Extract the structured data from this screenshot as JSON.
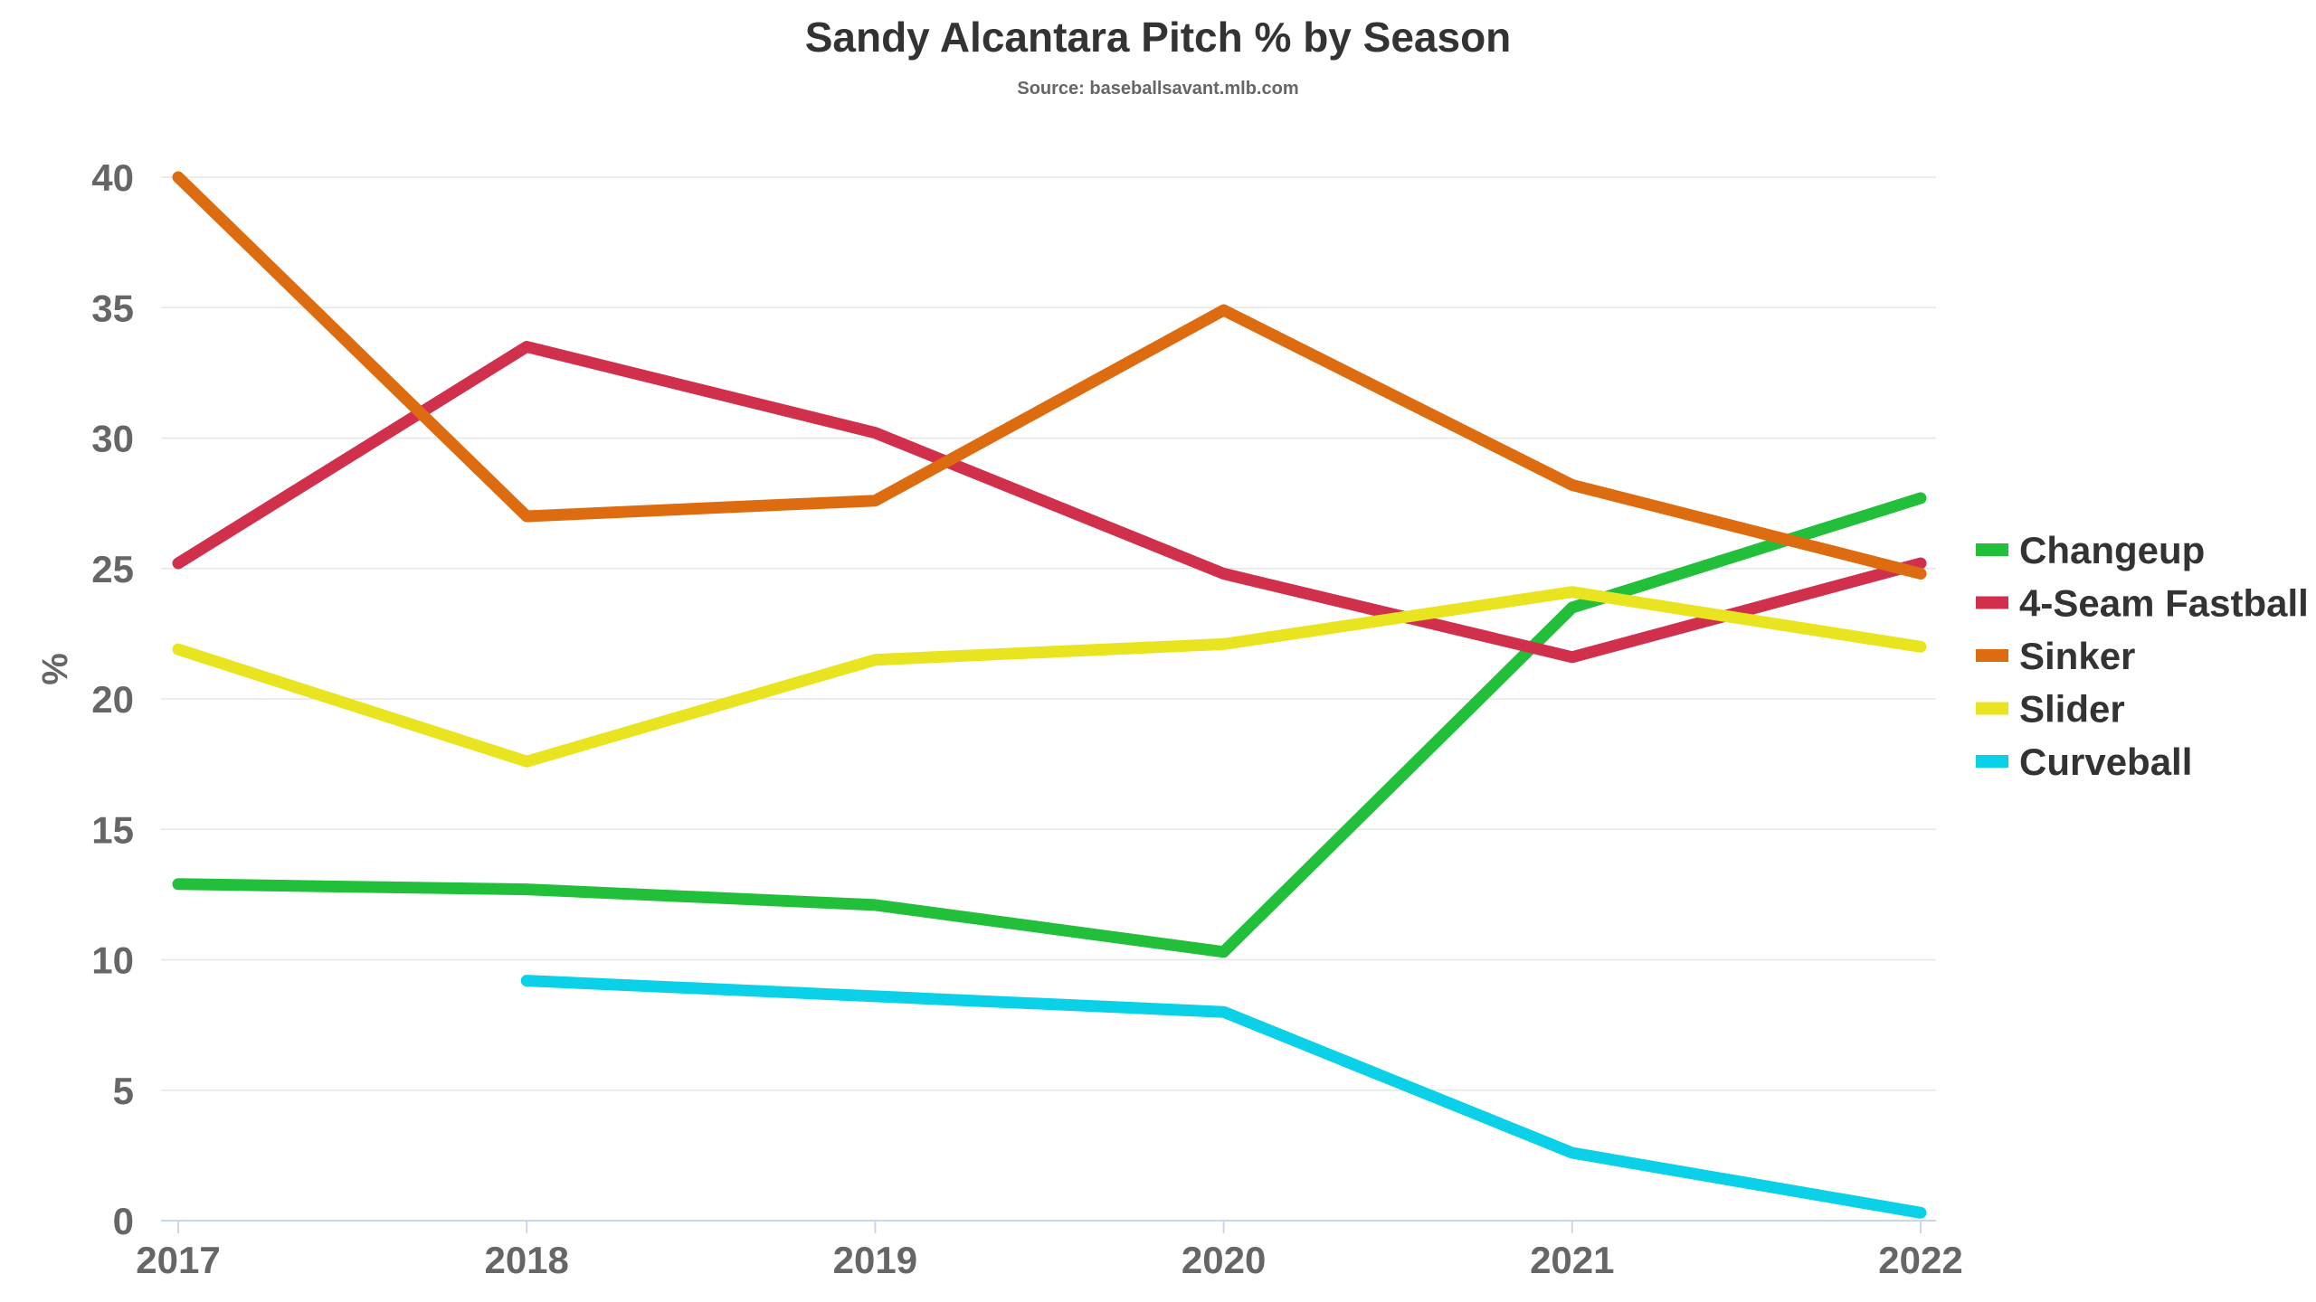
{
  "chart_data": {
    "type": "line",
    "title": "Sandy Alcantara Pitch % by Season",
    "subtitle": "Source: baseballsavant.mlb.com",
    "xlabel": "",
    "ylabel": "%",
    "categories": [
      "2017",
      "2018",
      "2019",
      "2020",
      "2021",
      "2022"
    ],
    "ylim": [
      0,
      40
    ],
    "yticks": [
      0,
      5,
      10,
      15,
      20,
      25,
      30,
      35,
      40
    ],
    "grid": true,
    "legend_position": "right",
    "series": [
      {
        "name": "Changeup",
        "color": "#21bf3a",
        "values": [
          12.9,
          12.7,
          12.1,
          10.3,
          23.5,
          27.7
        ]
      },
      {
        "name": "4-Seam Fastball",
        "color": "#d1304d",
        "values": [
          25.2,
          33.5,
          30.2,
          24.8,
          21.6,
          25.2
        ]
      },
      {
        "name": "Sinker",
        "color": "#dd6b10",
        "values": [
          40.0,
          27.0,
          27.6,
          34.9,
          28.2,
          24.8
        ]
      },
      {
        "name": "Slider",
        "color": "#e8e420",
        "values": [
          21.9,
          17.6,
          21.5,
          22.1,
          24.1,
          22.0
        ]
      },
      {
        "name": "Curveball",
        "color": "#0ad1e8",
        "values": [
          null,
          9.2,
          8.6,
          8.0,
          2.6,
          0.3
        ]
      }
    ]
  }
}
